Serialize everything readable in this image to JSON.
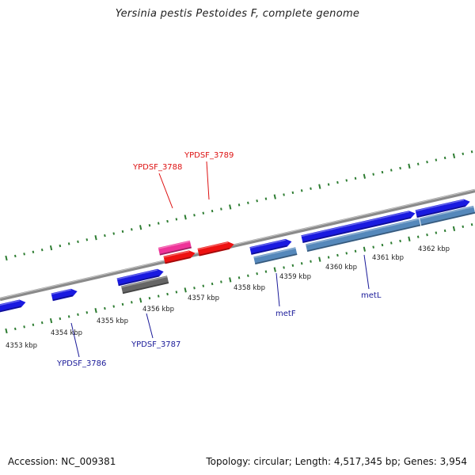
{
  "title": "Yersinia pestis Pestoides F, complete genome",
  "footer": {
    "accession": "Accession: NC_009381",
    "stats": "Topology: circular; Length: 4,517,345 bp; Genes: 3,954"
  },
  "colors": {
    "backbone": "#8a8a8a",
    "tick": "#2e7d32",
    "gene_blue": "#1a1ae0",
    "gene_red": "#ee1111",
    "gene_pink": "#ee3399",
    "gene_steel": "#5588bb",
    "gene_gray": "#666666",
    "label_blue": "#1a1a99",
    "label_red": "#dd1111"
  },
  "axis_labels": [
    "4353 kbp",
    "4354 kbp",
    "4355 kbp",
    "4356 kbp",
    "4357 kbp",
    "4358 kbp",
    "4359 kbp",
    "4360 kbp",
    "4361 kbp",
    "4362 kbp"
  ],
  "gene_labels": [
    {
      "text": "YPDSF_3786",
      "color": "blue"
    },
    {
      "text": "YPDSF_3787",
      "color": "blue"
    },
    {
      "text": "YPDSF_3788",
      "color": "red"
    },
    {
      "text": "YPDSF_3789",
      "color": "red"
    },
    {
      "text": "metF",
      "color": "blue"
    },
    {
      "text": "metL",
      "color": "blue"
    }
  ]
}
